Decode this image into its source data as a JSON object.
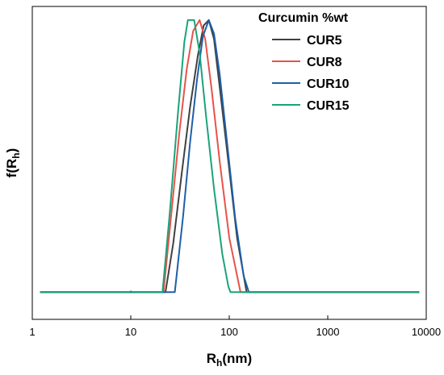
{
  "chart_data": {
    "type": "line",
    "title": "",
    "xlabel_main": "R",
    "xlabel_sub": "h",
    "xlabel_unit": "(nm)",
    "ylabel_main": "f(R",
    "ylabel_sub": "h",
    "ylabel_close": ")",
    "xscale": "log",
    "xlim": [
      1,
      10000
    ],
    "ylim": [
      -0.1,
      1.05
    ],
    "xticks": [
      1,
      10,
      100,
      1000,
      10000
    ],
    "xtick_labels": [
      "1",
      "10",
      "100",
      "1000",
      "10000"
    ],
    "yticks_visible": false,
    "grid": false,
    "legend": {
      "title": "Curcumin %wt",
      "placement": "top-right"
    },
    "series": [
      {
        "name": "CUR5",
        "color": "#404040",
        "points": [
          [
            1.2,
            0
          ],
          [
            22.5,
            0
          ],
          [
            27,
            0.18
          ],
          [
            33,
            0.44
          ],
          [
            40,
            0.68
          ],
          [
            48,
            0.87
          ],
          [
            55,
            0.98
          ],
          [
            62,
            1.0
          ],
          [
            70,
            0.93
          ],
          [
            82,
            0.72
          ],
          [
            100,
            0.45
          ],
          [
            120,
            0.2
          ],
          [
            145,
            0.03
          ],
          [
            150,
            0
          ],
          [
            8500,
            0
          ]
        ]
      },
      {
        "name": "CUR8",
        "color": "#e8524a",
        "points": [
          [
            1.2,
            0
          ],
          [
            21.5,
            0
          ],
          [
            26,
            0.3
          ],
          [
            31,
            0.58
          ],
          [
            37,
            0.82
          ],
          [
            43,
            0.96
          ],
          [
            50,
            1.0
          ],
          [
            57,
            0.93
          ],
          [
            66,
            0.75
          ],
          [
            80,
            0.48
          ],
          [
            100,
            0.2
          ],
          [
            125,
            0.03
          ],
          [
            130,
            0
          ],
          [
            8500,
            0
          ]
        ]
      },
      {
        "name": "CUR10",
        "color": "#1f5fa8",
        "points": [
          [
            1.2,
            0
          ],
          [
            28,
            0
          ],
          [
            34,
            0.28
          ],
          [
            40,
            0.55
          ],
          [
            47,
            0.78
          ],
          [
            54,
            0.94
          ],
          [
            62,
            1.0
          ],
          [
            70,
            0.95
          ],
          [
            80,
            0.8
          ],
          [
            95,
            0.55
          ],
          [
            115,
            0.27
          ],
          [
            140,
            0.06
          ],
          [
            158,
            0
          ],
          [
            8500,
            0
          ]
        ]
      },
      {
        "name": "CUR15",
        "color": "#1aa37a",
        "points": [
          [
            1.2,
            0
          ],
          [
            9.6,
            0
          ],
          [
            10,
            0.003
          ],
          [
            10.5,
            0
          ],
          [
            21,
            0
          ],
          [
            25,
            0.3
          ],
          [
            30,
            0.65
          ],
          [
            35,
            0.92
          ],
          [
            38,
            1.0
          ],
          [
            44,
            1.0
          ],
          [
            50,
            0.88
          ],
          [
            58,
            0.65
          ],
          [
            70,
            0.38
          ],
          [
            85,
            0.14
          ],
          [
            98,
            0.02
          ],
          [
            103,
            0
          ],
          [
            8500,
            0
          ]
        ]
      }
    ]
  }
}
